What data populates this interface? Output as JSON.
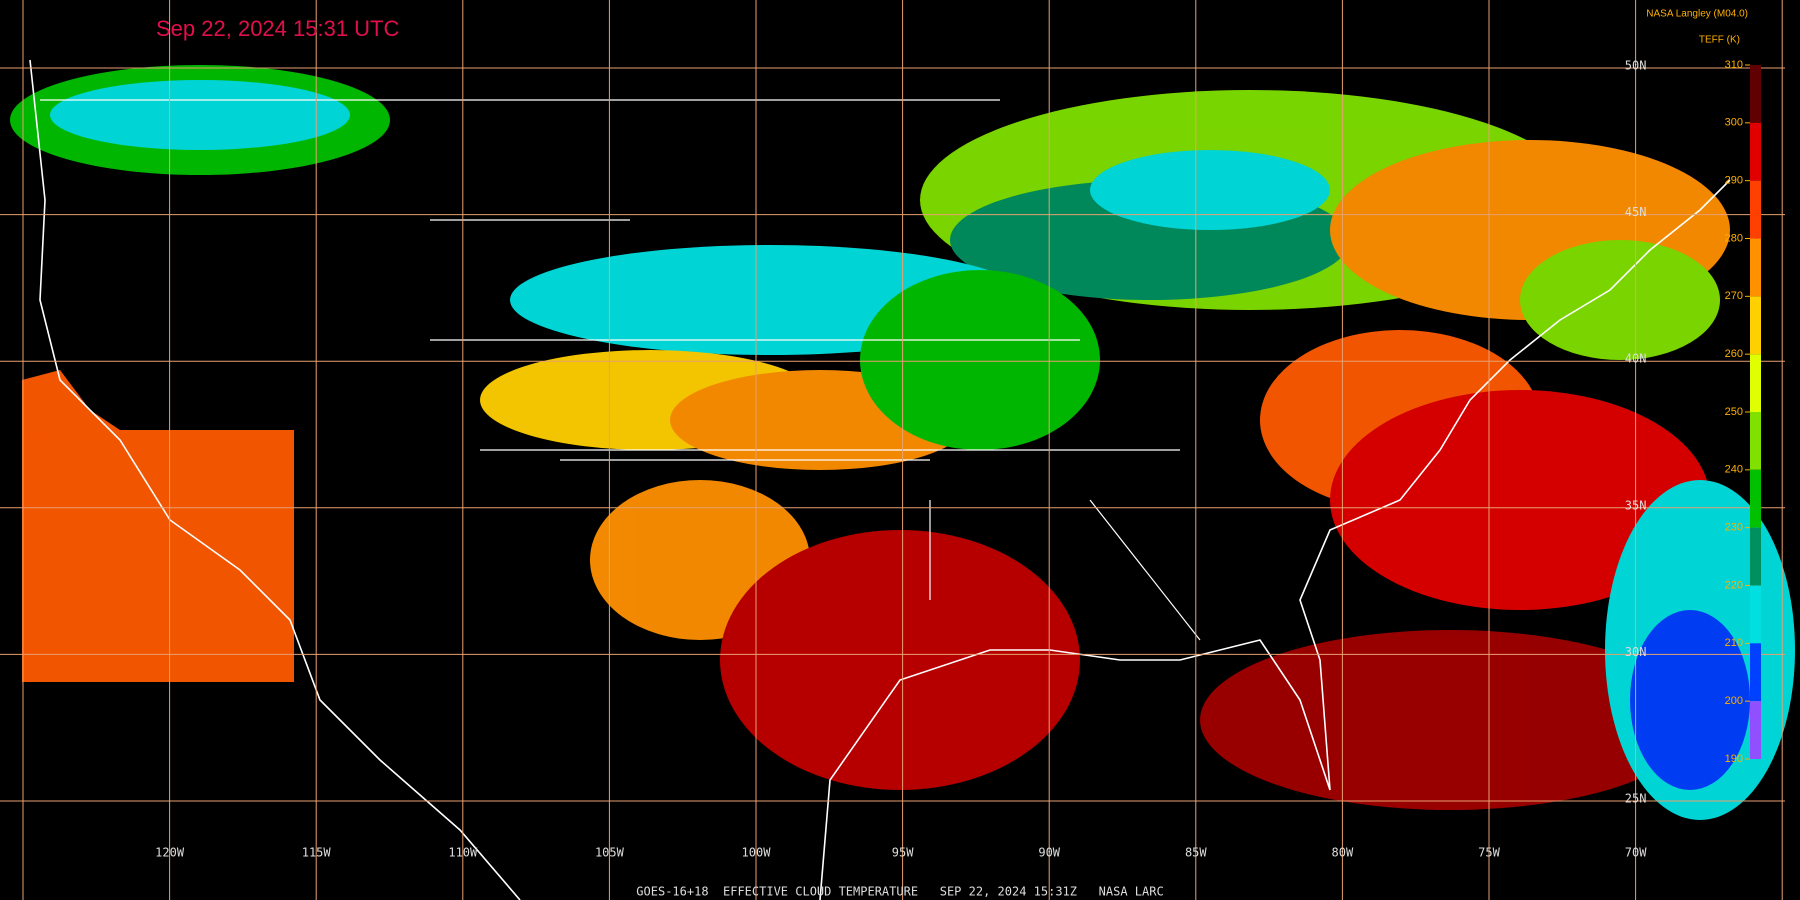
{
  "header": {
    "timestamp": "Sep 22, 2024 15:31 UTC",
    "source": "NASA Langley (M04.0)"
  },
  "colorbar": {
    "label": "TEFF (K)",
    "ticks": [
      310,
      300,
      290,
      280,
      270,
      260,
      250,
      240,
      230,
      220,
      210,
      200,
      190
    ],
    "colors": [
      "#600000",
      "#e00000",
      "#ff4000",
      "#ff9000",
      "#ffd000",
      "#e0ff00",
      "#80e000",
      "#00c000",
      "#009060",
      "#00e0e0",
      "#0040ff",
      "#9050ff"
    ]
  },
  "grid": {
    "lon_labels": [
      "120W",
      "115W",
      "110W",
      "105W",
      "100W",
      "95W",
      "90W",
      "85W",
      "80W",
      "75W",
      "70W"
    ],
    "lat_labels": [
      "50N",
      "45N",
      "40N",
      "35N",
      "30N",
      "25N"
    ]
  },
  "footer": "GOES-16+18  EFFECTIVE CLOUD TEMPERATURE   SEP 22, 2024 15:31Z   NASA LARC"
}
